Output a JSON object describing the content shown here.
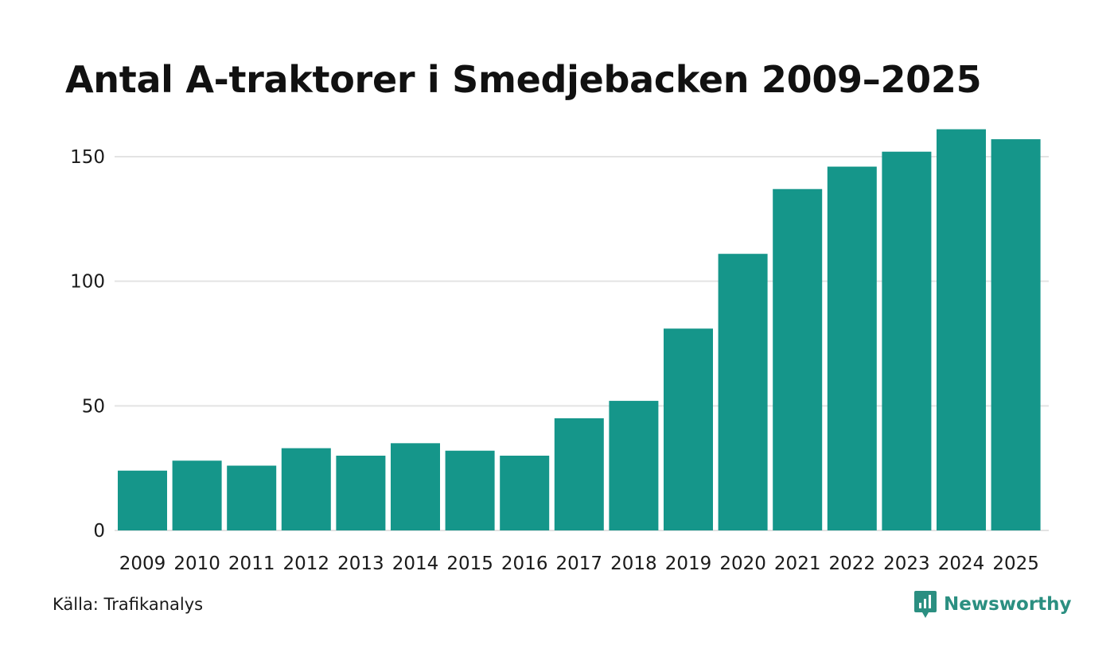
{
  "chart_data": {
    "type": "bar",
    "title": "Antal A-traktorer i Smedjebacken 2009–2025",
    "categories": [
      "2009",
      "2010",
      "2011",
      "2012",
      "2013",
      "2014",
      "2015",
      "2016",
      "2017",
      "2018",
      "2019",
      "2020",
      "2021",
      "2022",
      "2023",
      "2024",
      "2025"
    ],
    "values": [
      24,
      28,
      26,
      33,
      30,
      35,
      32,
      30,
      45,
      52,
      81,
      111,
      137,
      146,
      152,
      161,
      157
    ],
    "xlabel": "",
    "ylabel": "",
    "ylim": [
      0,
      165
    ],
    "yticks": [
      0,
      50,
      100,
      150
    ],
    "grid": true,
    "bar_color": "#15968a",
    "grid_color": "#e3e3e3"
  },
  "source": "Källa: Trafikanalys",
  "brand": {
    "name": "Newsworthy",
    "icon": "newsworthy-logo-icon",
    "color": "#2b8f81"
  }
}
